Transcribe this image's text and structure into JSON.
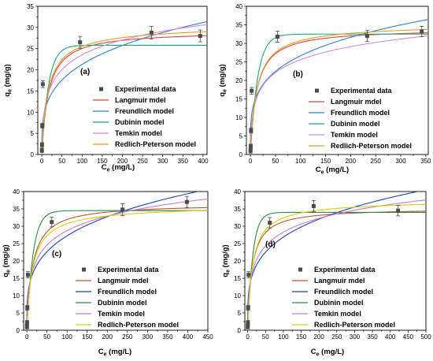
{
  "colors": {
    "experimental": "#4a4a4a",
    "langmuir": "#e8413b",
    "freundlich": "#2b7fd4",
    "dubinin": "#1aa87a",
    "temkin": "#d987e0",
    "redlich_peterson": "#e0a020",
    "series_cd": [
      "#4a4a4a",
      "#c0542c",
      "#1a3fc4",
      "#2a8a4a",
      "#c77bd1",
      "#d8d000"
    ]
  },
  "chart_data": [
    {
      "type": "scatter",
      "panel_label": "(a)",
      "xlabel_main": "C",
      "xlabel_sub": "e",
      "xlabel_units": " (mg/L)",
      "ylabel_main": "q",
      "ylabel_sub": "e",
      "ylabel_units": " (mg/g)",
      "xlim": [
        -10,
        410
      ],
      "ylim": [
        0,
        35
      ],
      "xticks": [
        0,
        50,
        100,
        150,
        200,
        250,
        300,
        350,
        400
      ],
      "yticks": [
        0,
        5,
        10,
        15,
        20,
        25,
        30,
        35
      ],
      "legend_position": "bottom-right",
      "series": [
        {
          "name": "Experimental data",
          "kind": "points",
          "x": [
            0.2,
            0.5,
            1.2,
            2.5,
            95,
            272,
            393
          ],
          "y": [
            1.0,
            2.3,
            6.8,
            16.6,
            26.5,
            28.8,
            28.0
          ],
          "err": [
            0.5,
            0.5,
            0.6,
            0.8,
            1.4,
            1.5,
            1.4
          ]
        },
        {
          "name": "Langmuir mdel",
          "kind": "curve",
          "model": "langmuir",
          "qm": 29.2,
          "b": 0.06
        },
        {
          "name": "Freundlich model",
          "kind": "curve",
          "model": "freundlich",
          "K": 6.0,
          "n": 0.275
        },
        {
          "name": "Dubinin model",
          "kind": "curve",
          "model": "dubinin",
          "qm": 25.8,
          "k": 0.06
        },
        {
          "name": "Temkin model",
          "kind": "curve",
          "model": "temkin",
          "A": 1.0,
          "B": 5.1
        },
        {
          "name": "Redlich-Peterson model",
          "kind": "curve",
          "model": "rp",
          "K": 2.0,
          "a": 0.075,
          "g": 0.98
        }
      ]
    },
    {
      "type": "scatter",
      "panel_label": "(b)",
      "xlabel_main": "C",
      "xlabel_sub": "e",
      "xlabel_units": " (mg/L)",
      "ylabel_main": "q",
      "ylabel_sub": "e",
      "ylabel_units": " (mg/g)",
      "xlim": [
        -8,
        355
      ],
      "ylim": [
        0,
        40
      ],
      "xticks": [
        0,
        50,
        100,
        150,
        200,
        250,
        300,
        350
      ],
      "yticks": [
        0,
        5,
        10,
        15,
        20,
        25,
        30,
        35,
        40
      ],
      "legend_position": "bottom-right",
      "series": [
        {
          "name": "Experimental data",
          "kind": "points",
          "x": [
            0.2,
            0.5,
            1.2,
            2.5,
            54,
            233,
            342
          ],
          "y": [
            1.0,
            2.2,
            6.5,
            17.2,
            31.8,
            32.0,
            33.2
          ],
          "err": [
            0.6,
            0.6,
            0.7,
            0.9,
            1.5,
            1.5,
            1.4
          ]
        },
        {
          "name": "Langmuir mdel",
          "kind": "curve",
          "model": "langmuir",
          "qm": 34.0,
          "b": 0.08
        },
        {
          "name": "Freundlich model",
          "kind": "curve",
          "model": "freundlich",
          "K": 8.5,
          "n": 0.248
        },
        {
          "name": "Dubinin model",
          "kind": "curve",
          "model": "dubinin",
          "qm": 32.5,
          "k": 0.07
        },
        {
          "name": "Temkin model",
          "kind": "curve",
          "model": "temkin",
          "A": 1.5,
          "B": 5.1
        },
        {
          "name": "Redlich-Peterson model",
          "kind": "curve",
          "model": "rp",
          "K": 2.8,
          "a": 0.085,
          "g": 0.99
        }
      ]
    },
    {
      "type": "scatter",
      "panel_label": "(c)",
      "xlabel_main": "C",
      "xlabel_sub": "e",
      "xlabel_units": " (mg/L)",
      "ylabel_main": "q",
      "ylabel_sub": "e",
      "ylabel_units": " (mg/g)",
      "xlim": [
        -8,
        450
      ],
      "ylim": [
        0,
        40
      ],
      "xticks": [
        0,
        50,
        100,
        150,
        200,
        250,
        300,
        350,
        400,
        450
      ],
      "yticks": [
        0,
        5,
        10,
        15,
        20,
        25,
        30,
        35,
        40
      ],
      "legend_position": "bottom-right",
      "series": [
        {
          "name": "Experimental data",
          "kind": "points",
          "x": [
            0.2,
            0.5,
            1.2,
            2.5,
            62,
            238,
            398
          ],
          "y": [
            1.0,
            2.2,
            6.5,
            16.0,
            31.2,
            34.8,
            37.0
          ],
          "err": [
            0.6,
            0.6,
            0.7,
            0.9,
            1.4,
            1.7,
            1.6
          ]
        },
        {
          "name": "Langmuir mdel",
          "kind": "curve",
          "model": "langmuir",
          "qm": 36.5,
          "b": 0.07
        },
        {
          "name": "Freundlich model",
          "kind": "curve",
          "model": "freundlich",
          "K": 8.0,
          "n": 0.266
        },
        {
          "name": "Dubinin model",
          "kind": "curve",
          "model": "dubinin",
          "qm": 34.5,
          "k": 0.065
        },
        {
          "name": "Temkin model",
          "kind": "curve",
          "model": "temkin",
          "A": 1.1,
          "B": 6.1
        },
        {
          "name": "Redlich-Peterson model",
          "kind": "curve",
          "model": "rp",
          "K": 2.6,
          "a": 0.08,
          "g": 0.985
        }
      ]
    },
    {
      "type": "scatter",
      "panel_label": "(d)",
      "xlabel_main": "C",
      "xlabel_sub": "e",
      "xlabel_units": " (mg/L)",
      "ylabel_main": "q",
      "ylabel_sub": "e",
      "ylabel_units": " (mg/g)",
      "xlim": [
        -8,
        500
      ],
      "ylim": [
        0,
        40
      ],
      "xticks": [
        0,
        50,
        100,
        150,
        200,
        250,
        300,
        350,
        400,
        450,
        500
      ],
      "yticks": [
        0,
        5,
        10,
        15,
        20,
        25,
        30,
        35,
        40
      ],
      "legend_position": "bottom-right",
      "series": [
        {
          "name": "Experimental data",
          "kind": "points",
          "x": [
            0.2,
            0.5,
            1.2,
            2.5,
            62,
            185,
            422
          ],
          "y": [
            1.0,
            2.2,
            6.5,
            16.0,
            31.0,
            35.8,
            34.5
          ],
          "err": [
            0.6,
            0.6,
            0.7,
            0.9,
            1.5,
            1.6,
            1.5
          ]
        },
        {
          "name": "Langmuir mdel",
          "kind": "curve",
          "model": "langmuir",
          "qm": 35.2,
          "b": 0.08
        },
        {
          "name": "Freundlich model",
          "kind": "curve",
          "model": "freundlich",
          "K": 8.3,
          "n": 0.255
        },
        {
          "name": "Dubinin model",
          "kind": "curve",
          "model": "dubinin",
          "qm": 34.0,
          "k": 0.07
        },
        {
          "name": "Temkin model",
          "kind": "curve",
          "model": "temkin",
          "A": 1.3,
          "B": 5.8
        },
        {
          "name": "Redlich-Peterson model",
          "kind": "curve",
          "model": "rp",
          "K": 2.8,
          "a": 0.08,
          "g": 0.99
        }
      ]
    }
  ]
}
